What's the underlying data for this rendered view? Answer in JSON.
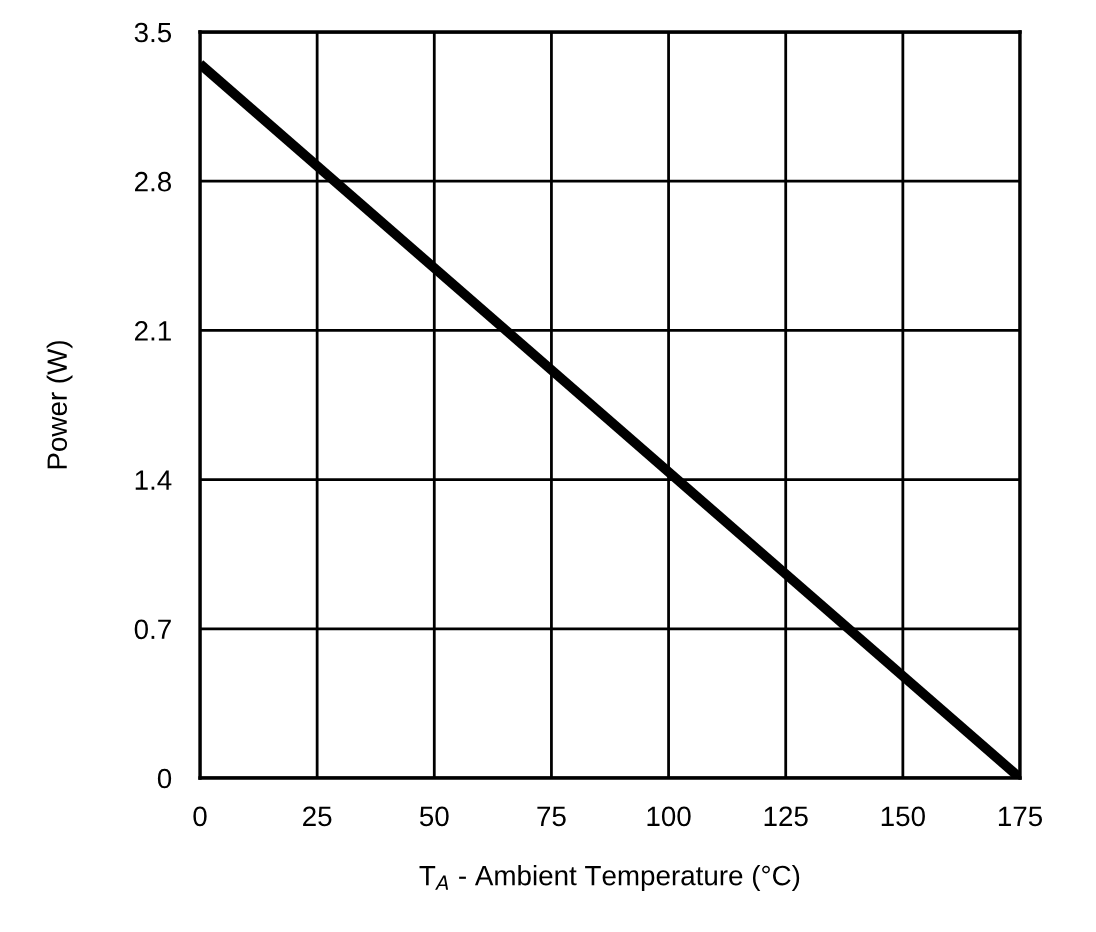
{
  "chart_data": {
    "type": "line",
    "xlabel": "T$_{A}$ - Ambient Temperature (°C)",
    "ylabel": "Power (W)",
    "x": [
      0,
      175
    ],
    "series": [
      {
        "color": "#000000",
        "values": [
          3.35,
          0
        ]
      }
    ],
    "xlim": [
      0,
      175
    ],
    "xticks": [
      0,
      25,
      50,
      75,
      100,
      125,
      150,
      175
    ],
    "ylim": [
      0,
      3.5
    ],
    "yticks": [
      0,
      0.7,
      1.4,
      2.1,
      2.8,
      3.5
    ],
    "grid": true,
    "line_style": "solid"
  }
}
